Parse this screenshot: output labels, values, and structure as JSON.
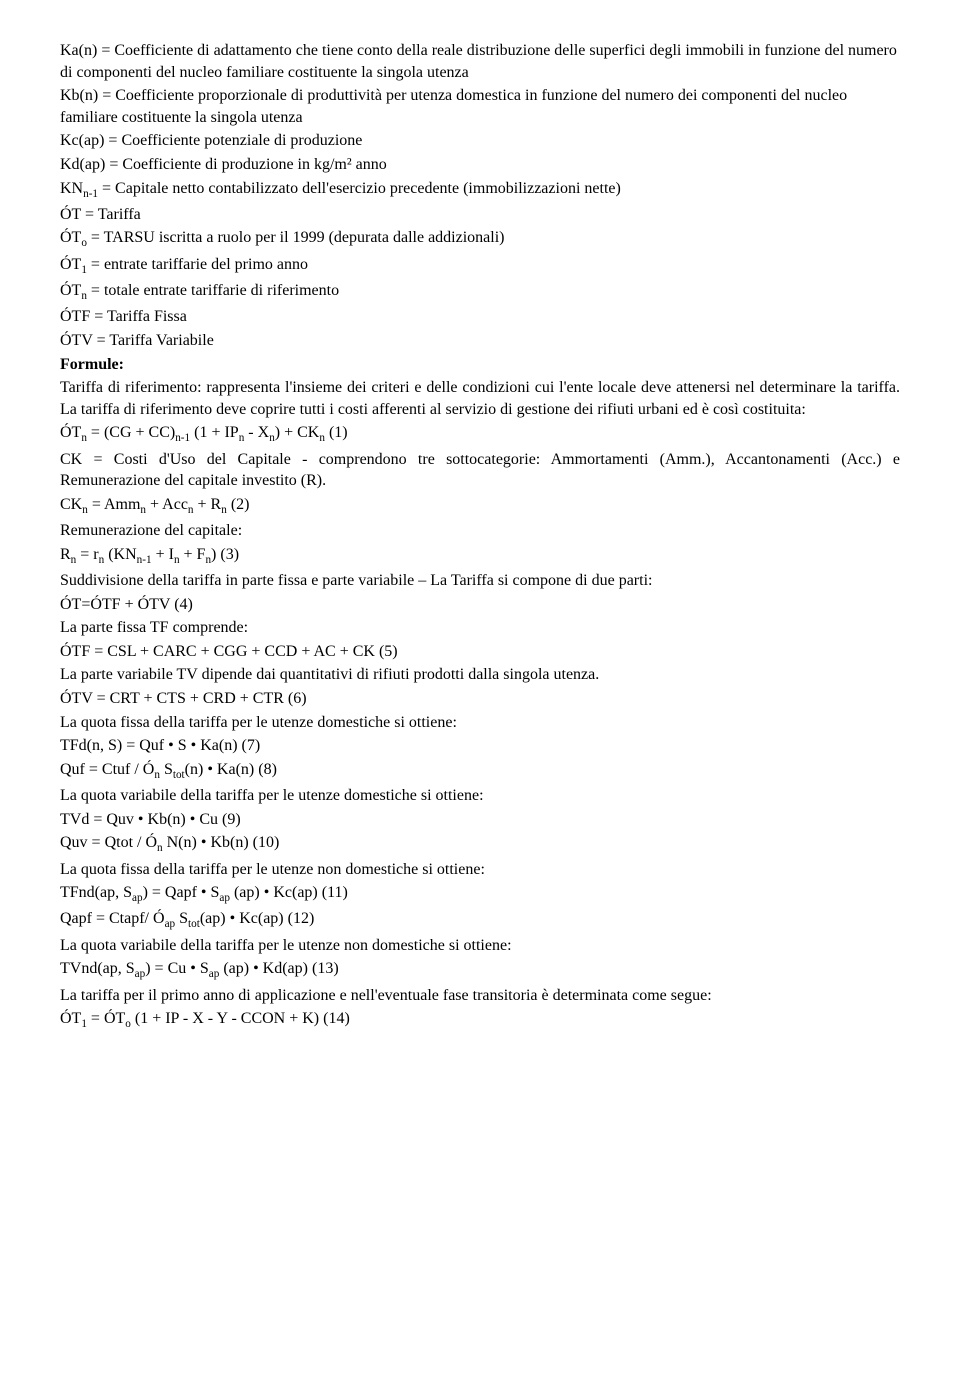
{
  "definitions": [
    {
      "term": "Ka(n)",
      "desc": "Coefficiente di adattamento che tiene conto della reale distribuzione delle superfici degli immobili in funzione del numero di componenti del nucleo familiare costituente la singola utenza"
    },
    {
      "term": "Kb(n)",
      "desc": "Coefficiente proporzionale di produttività per utenza domestica in funzione del numero dei componenti del nucleo familiare costituente la singola utenza"
    },
    {
      "term": "Kc(ap)",
      "desc": "Coefficiente potenziale di produzione"
    },
    {
      "term": "Kd(ap)",
      "desc": "Coefficiente di produzione in kg/m² anno"
    },
    {
      "term": "KNₙ₋₁",
      "desc": "Capitale netto contabilizzato dell'esercizio precedente (immobilizzazioni nette)"
    },
    {
      "term": "ÓT",
      "desc": "Tariffa"
    },
    {
      "term": "ÓTₒ",
      "desc": "TARSU iscritta a ruolo per il 1999 (depurata dalle addizionali)"
    },
    {
      "term": "ÓT₁",
      "desc": "entrate tariffarie del primo anno"
    },
    {
      "term": "ÓTₙ",
      "desc": "totale entrate tariffarie di riferimento"
    },
    {
      "term": "ÓTF",
      "desc": "Tariffa Fissa"
    },
    {
      "term": "ÓTV",
      "desc": "Tariffa Variabile"
    }
  ],
  "formulasTitle": "Formule:",
  "formulaLines": [
    "Tariffa di riferimento: rappresenta l'insieme dei criteri e delle condizioni cui l'ente locale deve attenersi nel determinare la tariffa. La tariffa di riferimento deve coprire tutti i costi afferenti al servizio di gestione dei rifiuti urbani ed è così costituita:",
    "ÓTₙ = (CG + CC)ₙ₋₁ (1 + IPₙ - Xₙ) + CKₙ (1)",
    "CK = Costi d'Uso del Capitale - comprendono tre sottocategorie: Ammortamenti (Amm.), Accantonamenti (Acc.) e Remunerazione del capitale investito (R).",
    "CKₙ = Ammₙ + Accₙ + Rₙ (2)",
    "Remunerazione del capitale:",
    "Rₙ = rₙ (KNₙ₋₁ + Iₙ + Fₙ) (3)",
    "Suddivisione della tariffa in parte fissa e parte variabile – La Tariffa si compone di due parti:",
    "ÓT=ÓTF + ÓTV (4)",
    "La parte fissa TF comprende:",
    "ÓTF = CSL + CARC + CGG + CCD + AC + CK (5)",
    "La parte variabile TV dipende dai quantitativi di rifiuti prodotti dalla singola utenza.",
    "ÓTV = CRT + CTS + CRD + CTR (6)",
    "La quota fissa della tariffa per le utenze domestiche si ottiene:",
    "TFd(n, S) = Quf • S • Ka(n) (7)",
    "Quf = Ctuf / Óₙ Sₜₒₜ(n) • Ka(n) (8)",
    "La quota variabile della tariffa per le utenze domestiche si ottiene:",
    "TVd = Quv • Kb(n) • Cu (9)",
    "Quv = Qtot / Óₙ N(n) • Kb(n) (10)",
    "La quota fissa della tariffa per le utenze non domestiche si ottiene:",
    "TFnd(ap, Sₐₚ) = Qapf • Sₐₚ (ap) • Kc(ap) (11)",
    "Qapf = Ctapf/ Óₐₚ Sₜₒₜ(ap) • Kc(ap) (12)",
    "La quota variabile della tariffa per le utenze non domestiche si ottiene:",
    "TVnd(ap, Sₐₚ) = Cu • Sₐₚ (ap) • Kd(ap) (13)",
    "La tariffa per il primo anno di applicazione e nell'eventuale fase transitoria è determinata come segue:",
    "ÓT₁ = ÓTₒ (1 + IP - X - Y - CCON + K) (14)"
  ]
}
